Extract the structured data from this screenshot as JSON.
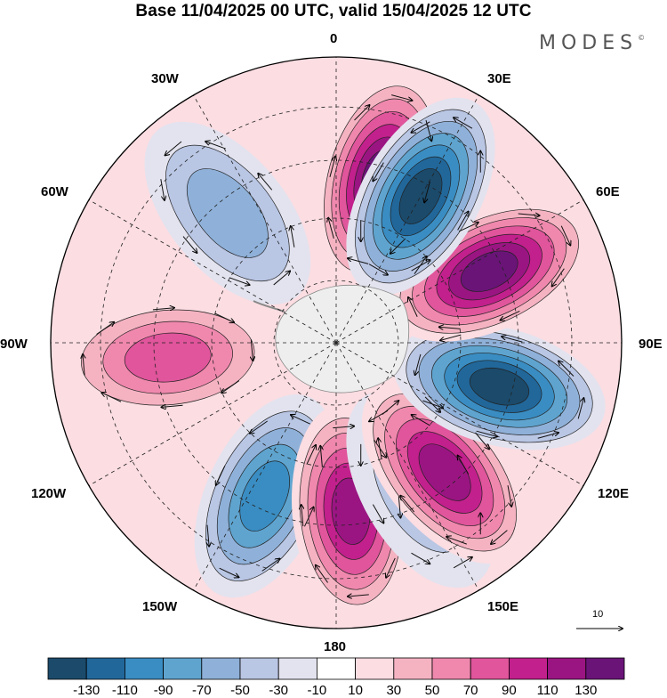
{
  "title": "Base 11/04/2025 00 UTC, valid 15/04/2025 12 UTC",
  "brand": "MODES",
  "brand_mark": "©",
  "longitude_labels": {
    "lon_0": "0",
    "lon_30e": "30E",
    "lon_60e": "60E",
    "lon_90e": "90E",
    "lon_120e": "120E",
    "lon_150e": "150E",
    "lon_180": "180",
    "lon_150w": "150W",
    "lon_120w": "120W",
    "lon_90w": "90W",
    "lon_60w": "60W",
    "lon_30w": "30W"
  },
  "colorbar": {
    "colors": [
      "#1b4a6b",
      "#21679a",
      "#3a8dc2",
      "#5fa4cf",
      "#8fb1d9",
      "#b9c6e4",
      "#e3e3ef",
      "#ffffff",
      "#fbdde2",
      "#f5b3c2",
      "#f088ad",
      "#e0559b",
      "#c2208c",
      "#9a1582",
      "#6a1478"
    ],
    "ticks": [
      "-130",
      "-110",
      "-90",
      "-70",
      "-50",
      "-30",
      "-10",
      "10",
      "30",
      "50",
      "70",
      "90",
      "110",
      "130"
    ]
  },
  "vector_scale_label": "10",
  "anomaly_centers": [
    {
      "lon_deg": 15,
      "sign": "positive",
      "strength": 130
    },
    {
      "lon_deg": -40,
      "sign": "negative",
      "strength": 60
    },
    {
      "lon_deg": -95,
      "sign": "positive",
      "strength": 70
    },
    {
      "lon_deg": -155,
      "sign": "negative",
      "strength": 90
    },
    {
      "lon_deg": 175,
      "sign": "positive",
      "strength": 110
    },
    {
      "lon_deg": 150,
      "sign": "negative",
      "strength": 40
    },
    {
      "lon_deg": 140,
      "sign": "positive",
      "strength": 120
    },
    {
      "lon_deg": 105,
      "sign": "negative",
      "strength": 130
    },
    {
      "lon_deg": 65,
      "sign": "positive",
      "strength": 130
    },
    {
      "lon_deg": 30,
      "sign": "negative",
      "strength": 130
    }
  ]
}
